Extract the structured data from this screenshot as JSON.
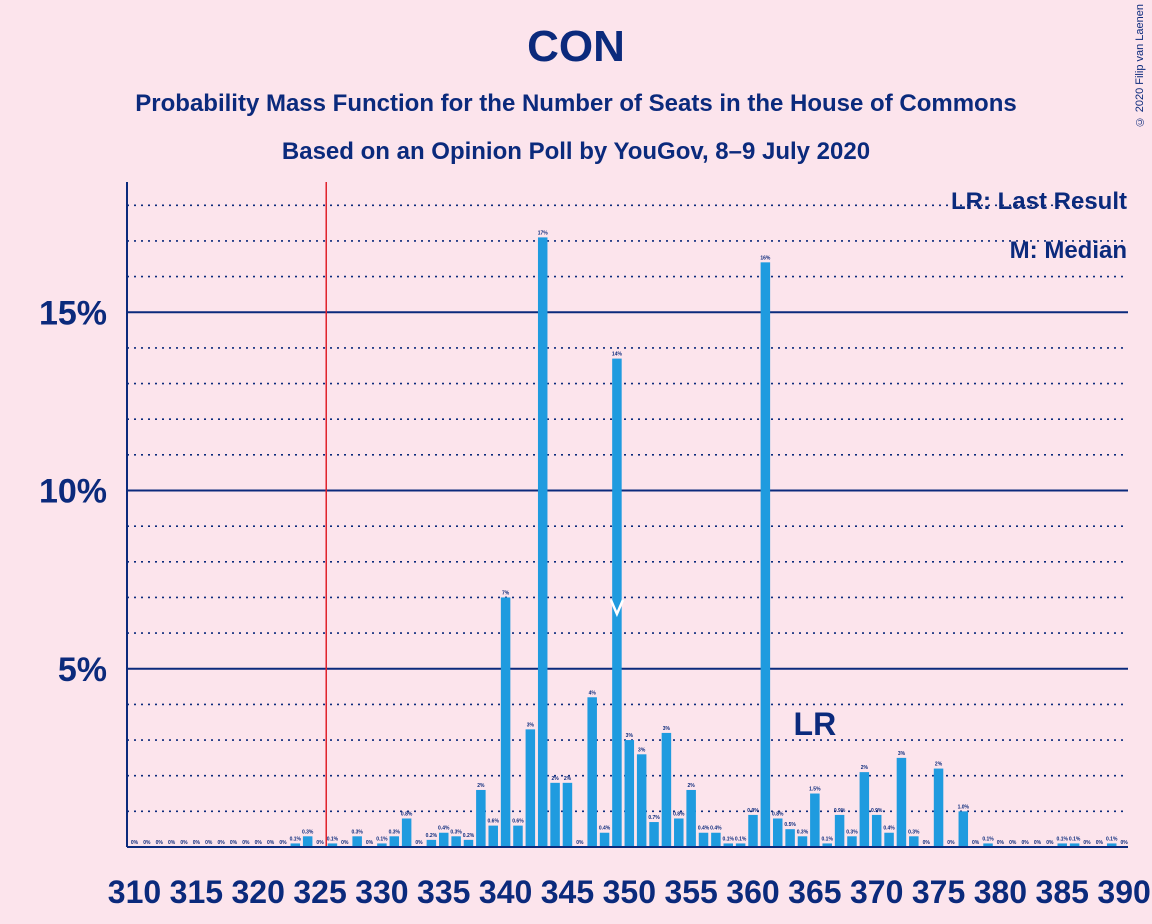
{
  "header": {
    "title": "CON",
    "subtitle1": "Probability Mass Function for the Number of Seats in the House of Commons",
    "subtitle2": "Based on an Opinion Poll by YouGov, 8–9 July 2020",
    "credit": "© 2020 Filip van Laenen"
  },
  "legend": {
    "lr": "LR: Last Result",
    "median": "M: Median"
  },
  "colors": {
    "bar": "#1f9bdf",
    "axis": "#0b2a7c",
    "background": "#fce4ec",
    "last_result_line": "#e0202a"
  },
  "chart_data": {
    "type": "bar",
    "title": "CON",
    "xlabel": "",
    "ylabel": "",
    "x": [
      310,
      311,
      312,
      313,
      314,
      315,
      316,
      317,
      318,
      319,
      320,
      321,
      322,
      323,
      324,
      325,
      326,
      327,
      328,
      329,
      330,
      331,
      332,
      333,
      334,
      335,
      336,
      337,
      338,
      339,
      340,
      341,
      342,
      343,
      344,
      345,
      346,
      347,
      348,
      349,
      350,
      351,
      352,
      353,
      354,
      355,
      356,
      357,
      358,
      359,
      360,
      361,
      362,
      363,
      364,
      365,
      366,
      367,
      368,
      369,
      370,
      371,
      372,
      373,
      374,
      375,
      376,
      377,
      378,
      379,
      380,
      381,
      382,
      383,
      384,
      385,
      386,
      387,
      388,
      389,
      390
    ],
    "values": [
      0,
      0,
      0,
      0,
      0,
      0,
      0,
      0,
      0,
      0,
      0,
      0,
      0,
      0.1,
      0.3,
      0,
      0.1,
      0,
      0.3,
      0,
      0.1,
      0.3,
      0.8,
      0,
      0.2,
      0.4,
      0.3,
      0.2,
      1.6,
      0.6,
      7.0,
      0.6,
      3.3,
      17.1,
      1.8,
      1.8,
      0,
      4.2,
      0.4,
      13.7,
      3.0,
      2.6,
      0.7,
      3.2,
      0.8,
      1.6,
      0.4,
      0.4,
      0.1,
      0.1,
      0.9,
      16.4,
      0.8,
      0.5,
      0.3,
      1.5,
      0.1,
      0.9,
      0.3,
      2.1,
      0.9,
      0.4,
      2.5,
      0.3,
      0,
      2.2,
      0,
      1.0,
      0,
      0.1,
      0,
      0,
      0,
      0,
      0,
      0.1,
      0.1,
      0,
      0,
      0.1,
      0
    ],
    "labels": [
      "0%",
      "0%",
      "0%",
      "0%",
      "0%",
      "0%",
      "0%",
      "0%",
      "0%",
      "0%",
      "0%",
      "0%",
      "0%",
      "0.1%",
      "0.3%",
      "0%",
      "0.1%",
      "0%",
      "0.3%",
      "0%",
      "0.1%",
      "0.3%",
      "0.8%",
      "0%",
      "0.2%",
      "0.4%",
      "0.3%",
      "0.2%",
      "2%",
      "0.6%",
      "7%",
      "0.6%",
      "3%",
      "17%",
      "2%",
      "2%",
      "0%",
      "4%",
      "0.4%",
      "14%",
      "3%",
      "3%",
      "0.7%",
      "3%",
      "0.8%",
      "2%",
      "0.4%",
      "0.4%",
      "0.1%",
      "0.1%",
      "0.9%",
      "16%",
      "0.8%",
      "0.5%",
      "0.3%",
      "1.5%",
      "0.1%",
      "0.9%",
      "0.3%",
      "2%",
      "0.9%",
      "0.4%",
      "3%",
      "0.3%",
      "0%",
      "2%",
      "0%",
      "1.0%",
      "0%",
      "0.1%",
      "0%",
      "0%",
      "0%",
      "0%",
      "0%",
      "0.1%",
      "0.1%",
      "0%",
      "0%",
      "0.1%",
      "0%"
    ],
    "x_ticks": [
      "310",
      "315",
      "320",
      "325",
      "330",
      "335",
      "340",
      "345",
      "350",
      "355",
      "360",
      "365",
      "370",
      "375",
      "380",
      "385",
      "390"
    ],
    "y_ticks": [
      "5%",
      "10%",
      "15%"
    ],
    "ylim": [
      0,
      18.5
    ],
    "last_result": 326,
    "last_result_label": "LR",
    "median": 349,
    "median_marker": "M",
    "grid": true,
    "legend_position": "top-right"
  }
}
